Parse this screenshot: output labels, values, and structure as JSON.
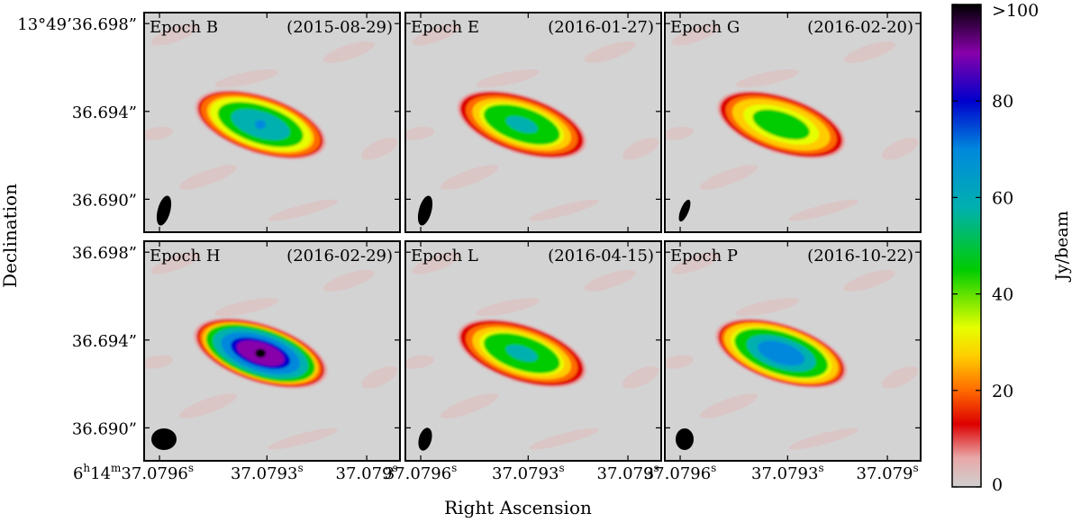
{
  "chart_data": {
    "type": "heatmap",
    "title": "",
    "xlabel": "Right Ascension",
    "ylabel": "Declination",
    "x_ticks": [
      {
        "h": "6",
        "hs": "h",
        "m": "14",
        "ms": "m",
        "s": "37.0796",
        "ss": "s"
      },
      {
        "h": "",
        "hs": "",
        "m": "",
        "ms": "",
        "s": "37.0793",
        "ss": "s"
      },
      {
        "h": "",
        "hs": "",
        "m": "",
        "ms": "",
        "s": "37.079",
        "ss": "s"
      }
    ],
    "x_ticks_plain": [
      {
        "s": "37.0796",
        "ss": "s"
      },
      {
        "s": "37.0793",
        "ss": "s"
      },
      {
        "s": "37.079",
        "ss": "s"
      }
    ],
    "y_ticks": [
      {
        "label": "13°49’36.698”",
        "first": true
      },
      {
        "label": "36.694”"
      },
      {
        "label": "36.690”"
      }
    ],
    "y_ticks_row2": [
      {
        "label": "36.698”"
      },
      {
        "label": "36.694”"
      },
      {
        "label": "36.690”"
      }
    ],
    "ylim": [
      36.6885,
      36.6985
    ],
    "colorbar": {
      "label": "Jy/beam",
      "ticks": [
        "0",
        "20",
        "40",
        "60",
        "80",
        ">100"
      ],
      "tick_values": [
        0,
        20,
        40,
        60,
        80,
        100
      ],
      "range": [
        0,
        100
      ]
    },
    "panels": [
      {
        "epoch": "Epoch B",
        "date": "(2015-08-29)",
        "peak": 62,
        "beam": "narrow"
      },
      {
        "epoch": "Epoch E",
        "date": "(2016-01-27)",
        "peak": 50,
        "beam": "narrow"
      },
      {
        "epoch": "Epoch G",
        "date": "(2016-02-20)",
        "peak": 45,
        "beam": "thin"
      },
      {
        "epoch": "Epoch H",
        "date": "(2016-02-29)",
        "peak": 95,
        "beam": "round"
      },
      {
        "epoch": "Epoch L",
        "date": "(2016-04-15)",
        "peak": 50,
        "beam": "small"
      },
      {
        "epoch": "Epoch P",
        "date": "(2016-10-22)",
        "peak": 68,
        "beam": "roundsmall"
      }
    ]
  }
}
